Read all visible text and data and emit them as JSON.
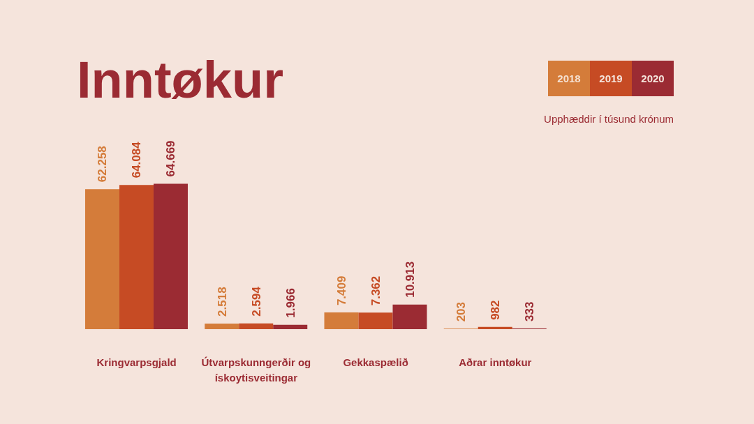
{
  "chart_data": {
    "type": "bar",
    "title": "Inntøkur",
    "subtitle": "Upphæddir í túsund krónum",
    "categories": [
      "Kringvarpsgjald",
      "Útvarpskunngerðir og ískoytisveitingar",
      "Gekkaspælið",
      "Aðrar inntøkur"
    ],
    "series": [
      {
        "name": "2018",
        "color": "#d47c3a",
        "values": [
          62258,
          2518,
          7409,
          203
        ],
        "value_labels": [
          "62.258",
          "2.518",
          "7.409",
          "203"
        ]
      },
      {
        "name": "2019",
        "color": "#c64b24",
        "values": [
          64084,
          2594,
          7362,
          982
        ],
        "value_labels": [
          "64.084",
          "2.594",
          "7.362",
          "982"
        ]
      },
      {
        "name": "2020",
        "color": "#9b2b33",
        "values": [
          64669,
          1966,
          10913,
          333
        ],
        "value_labels": [
          "64.669",
          "1.966",
          "10.913",
          "333"
        ]
      }
    ],
    "legend": "top right",
    "grid": false
  }
}
